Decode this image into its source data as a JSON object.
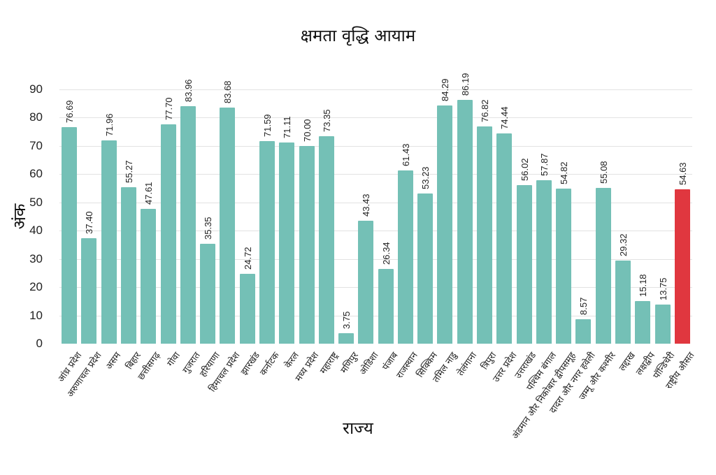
{
  "chart_data": {
    "type": "bar",
    "title": "क्षमता वृद्धि आयाम",
    "xlabel": "राज्य",
    "ylabel": "अंक",
    "ylim": [
      0,
      90
    ],
    "yticks": [
      0,
      10,
      20,
      30,
      40,
      50,
      60,
      70,
      80,
      90
    ],
    "grid": true,
    "legend": null,
    "bar_color": "#74c0b6",
    "highlight_color": "#e0373f",
    "highlight_category": "राष्ट्रीय औसत",
    "categories": [
      "आंध्र प्रदेश",
      "अरुणाचल प्रदेश",
      "असम",
      "बिहार",
      "छत्तीसगढ़",
      "गोवा",
      "गुजरात",
      "हरियाणा",
      "हिमाचल प्रदेश",
      "झारखंड",
      "कर्नाटक",
      "केरल",
      "मध्य प्रदेश",
      "महाराष्ट्र",
      "मणिपुर",
      "ओडिशा",
      "पंजाब",
      "राजस्थान",
      "सिक्किम",
      "तमिल नाडु",
      "तेलंगाना",
      "त्रिपुरा",
      "उत्तर प्रदेश",
      "उत्तराखंड",
      "पश्चिम बंगाल",
      "अंडमान और निकोबार द्वीपसमूह",
      "दादरा और नगर हवेली",
      "जम्मू और कश्मीर",
      "लद्दाख",
      "लक्षद्वीप",
      "पॉन्डिचेरी",
      "राष्ट्रीय औसत"
    ],
    "values": [
      76.69,
      37.4,
      71.96,
      55.27,
      47.61,
      77.7,
      83.96,
      35.35,
      83.68,
      24.72,
      71.59,
      71.11,
      70.0,
      73.35,
      3.75,
      43.43,
      26.34,
      61.43,
      53.23,
      84.29,
      86.19,
      76.82,
      74.44,
      56.02,
      57.87,
      54.82,
      8.57,
      55.08,
      29.32,
      15.18,
      13.75,
      54.63
    ],
    "labels": [
      "76.69",
      "37.40",
      "71.96",
      "55.27",
      "47.61",
      "77.70",
      "83.96",
      "35.35",
      "83.68",
      "24.72",
      "71.59",
      "71.11",
      "70.00",
      "73.35",
      "3.75",
      "43.43",
      "26.34",
      "61.43",
      "53.23",
      "84.29",
      "86.19",
      "76.82",
      "74.44",
      "56.02",
      "57.87",
      "54.82",
      "8.57",
      "55.08",
      "29.32",
      "15.18",
      "13.75",
      "54.63"
    ]
  }
}
